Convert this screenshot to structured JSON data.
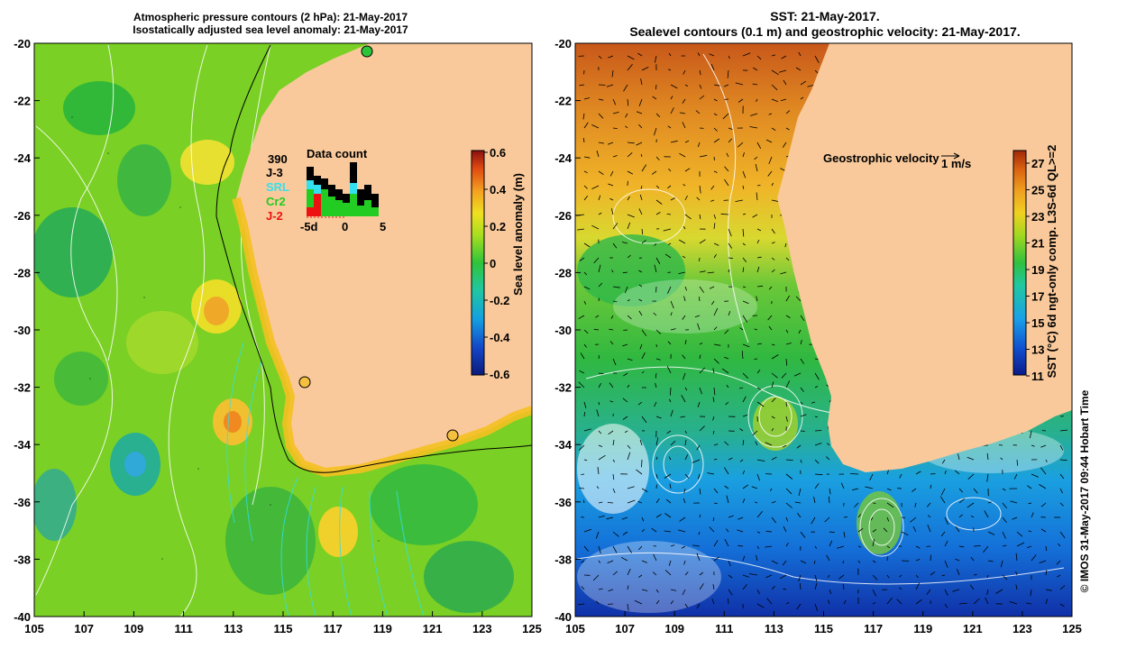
{
  "left": {
    "title_line1": "Atmospheric pressure contours (2 hPa): 21-May-2017",
    "title_line2": "Isostatically adjusted sea level anomaly: 21-May-2017",
    "y_ticks": [
      "-20",
      "-22",
      "-24",
      "-26",
      "-28",
      "-30",
      "-32",
      "-34",
      "-36",
      "-38",
      "-40"
    ],
    "x_ticks": [
      "105",
      "107",
      "109",
      "111",
      "113",
      "115",
      "117",
      "119",
      "121",
      "123",
      "125"
    ],
    "colorbar": {
      "label": "Sea level anomaly (m)",
      "ticks": [
        "0.6",
        "0.4",
        "0.2",
        "0",
        "-0.2",
        "-0.4",
        "-0.6"
      ],
      "colors": [
        "#0b1a7a",
        "#1346c8",
        "#14a0e0",
        "#21c7a0",
        "#2ec43a",
        "#a6de20",
        "#f0e020",
        "#f4a020",
        "#e04a10",
        "#8a1010"
      ]
    },
    "data_count": {
      "total": "390",
      "title": "Data count",
      "missions": [
        {
          "name": "J-3",
          "color": "#000000"
        },
        {
          "name": "SRL",
          "color": "#33e0f0"
        },
        {
          "name": "Cr2",
          "color": "#22cc22"
        },
        {
          "name": "J-2",
          "color": "#ee1111"
        }
      ],
      "x_ticks": [
        "-5d",
        "0",
        "5"
      ]
    }
  },
  "right": {
    "title_line1": "SST: 21-May-2017.",
    "title_line2": "Sealevel contours (0.1 m) and geostrophic velocity: 21-May-2017.",
    "y_ticks": [
      "-20",
      "-22",
      "-24",
      "-26",
      "-28",
      "-30",
      "-32",
      "-34",
      "-36",
      "-38",
      "-40"
    ],
    "x_ticks": [
      "105",
      "107",
      "109",
      "111",
      "113",
      "115",
      "117",
      "119",
      "121",
      "123",
      "125"
    ],
    "velocity_label": "Geostrophic velocity",
    "velocity_scale": "1 m/s",
    "colorbar": {
      "label": "SST (°C) 6d ngt-only comp. L3S-6d QL>=2",
      "ticks": [
        "27",
        "25",
        "23",
        "21",
        "19",
        "17",
        "15",
        "13",
        "11"
      ],
      "colors": [
        "#0a1a8a",
        "#1050d0",
        "#1aa0e8",
        "#20c8a0",
        "#30c040",
        "#a0d820",
        "#f0d020",
        "#f0a020",
        "#d86010",
        "#a02808"
      ]
    }
  },
  "footer": "© IMOS 31-May-2017 09:44 Hobart Time",
  "land_color": "#f9c99b"
}
